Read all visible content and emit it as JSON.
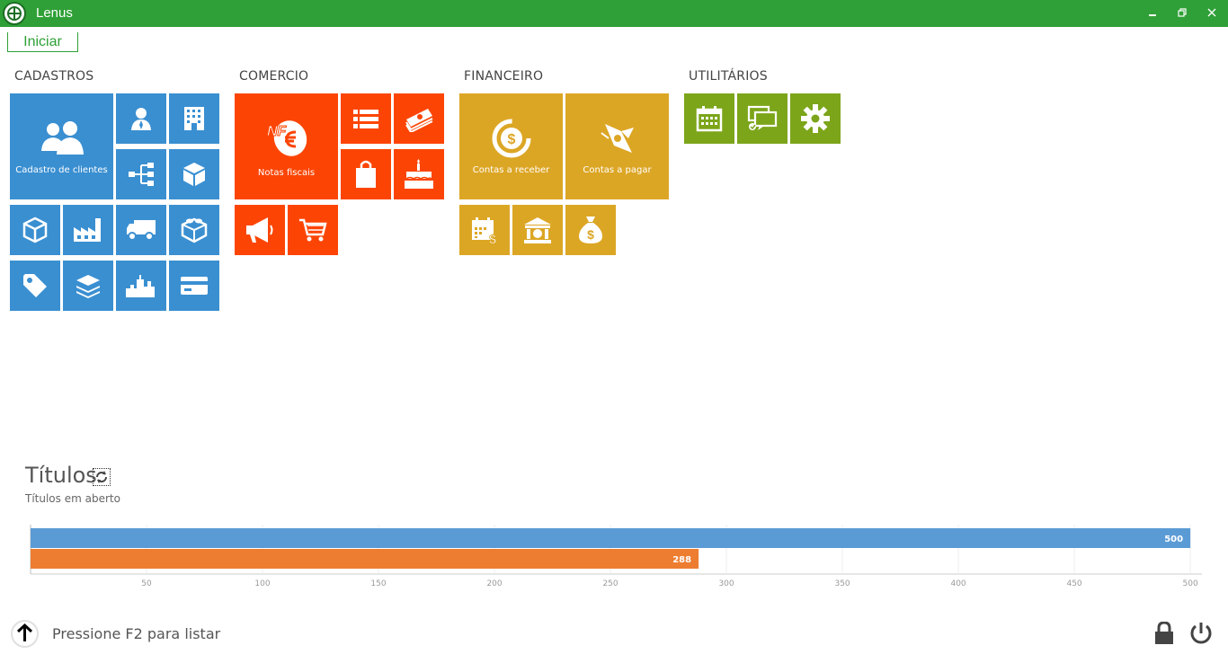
{
  "window": {
    "title": "Lenus"
  },
  "tabs": [
    {
      "label": "Iniciar"
    }
  ],
  "sections": {
    "cadastros": {
      "title": "CADASTROS"
    },
    "comercio": {
      "title": "COMERCIO"
    },
    "financeiro": {
      "title": "FINANCEIRO"
    },
    "utilitarios": {
      "title": "UTILITÁRIOS"
    }
  },
  "tiles": {
    "cadastro_clientes": {
      "label": "Cadastro de clientes",
      "icon": "users-icon"
    },
    "notas_fiscais": {
      "label": "Notas fiscais",
      "icon": "nfe-icon"
    },
    "contas_receber": {
      "label": "Contas a receber",
      "icon": "coin-receive-icon"
    },
    "contas_pagar": {
      "label": "Contas a pagar",
      "icon": "money-fly-icon"
    }
  },
  "colors": {
    "titlebar": "#2fa037",
    "cadastros": "#3a8fd1",
    "comercio": "#fc4504",
    "financeiro": "#dca625",
    "utilitarios": "#7ca51a"
  },
  "titulos": {
    "title": "Títulos",
    "subtitle": "Títulos em aberto"
  },
  "chart_data": {
    "type": "bar",
    "orientation": "horizontal",
    "series": [
      {
        "values": [
          500
        ],
        "color": "#5b9bd5"
      },
      {
        "values": [
          288
        ],
        "color": "#ed7d31"
      }
    ],
    "data_labels": [
      "500",
      "288"
    ],
    "xlim": [
      0,
      505
    ],
    "x_ticks": [
      50,
      100,
      150,
      200,
      250,
      300,
      350,
      400,
      450,
      500
    ],
    "grid": true
  },
  "footer": {
    "hint": "Pressione F2 para listar"
  }
}
